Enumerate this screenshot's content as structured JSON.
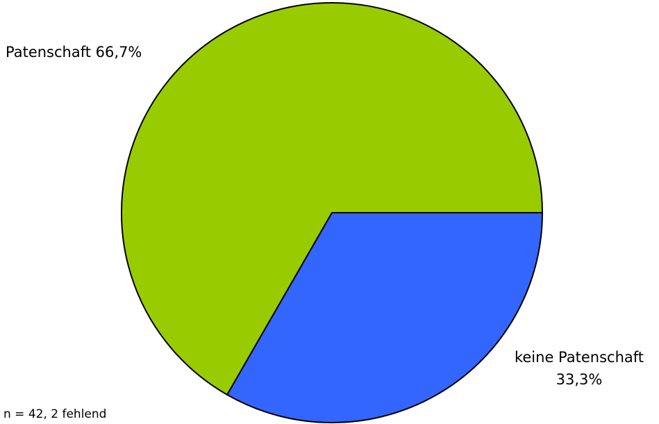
{
  "chart_data": {
    "type": "pie",
    "slices": [
      {
        "name": "Patenschaft",
        "value": 66.7,
        "value_label": "66,7%",
        "color": "#99cc00"
      },
      {
        "name": "keine Patenschaft",
        "value": 33.3,
        "value_label": "33,3%",
        "color": "#3366ff"
      }
    ],
    "title": "",
    "legend": "none",
    "start_angle_degrees": 0,
    "direction": "clockwise"
  },
  "footnote": "n = 42, 2 fehlend"
}
